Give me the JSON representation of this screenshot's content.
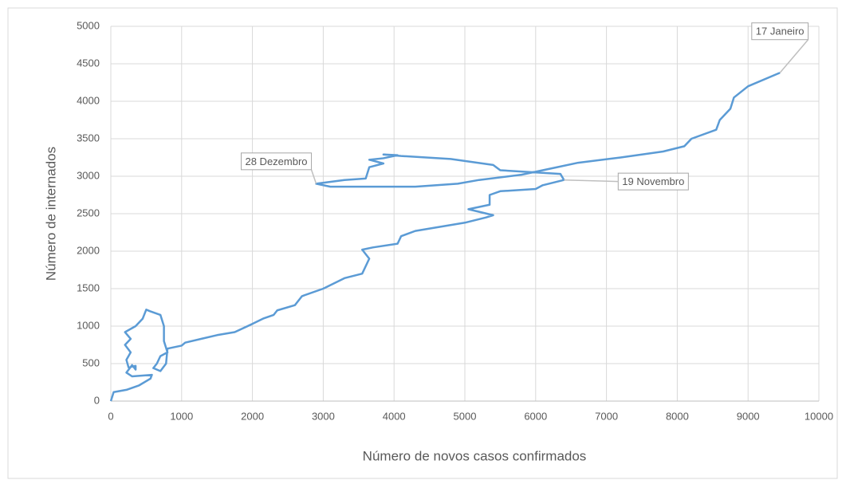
{
  "chart_data": {
    "type": "line",
    "x_label": "Número de novos casos confirmados",
    "y_label": "Número de internados",
    "x": [
      0,
      40,
      220,
      400,
      560,
      580,
      300,
      220,
      300,
      350,
      350,
      250,
      220,
      280,
      200,
      280,
      200,
      350,
      450,
      500,
      550,
      700,
      750,
      750,
      800,
      700,
      650,
      600,
      650,
      700,
      780,
      800,
      1000,
      1050,
      1500,
      1750,
      2000,
      2150,
      2300,
      2350,
      2600,
      2700,
      3000,
      3300,
      3550,
      3650,
      3550,
      3700,
      4050,
      4100,
      4300,
      5000,
      5300,
      5400,
      5050,
      5350,
      5350,
      5500,
      6000,
      6100,
      6400,
      6350,
      5500,
      5400,
      4800,
      4100,
      3850,
      4050,
      3850,
      3650,
      3850,
      3650,
      3600,
      3300,
      2900,
      3100,
      4300,
      4900,
      5200,
      5800,
      6300,
      6600,
      7200,
      7800,
      8100,
      8200,
      8550,
      8600,
      8750,
      8800,
      9000,
      9450
    ],
    "series": [
      {
        "name": "Internados",
        "color": "#5b9bd5",
        "values": [
          0,
          120,
          150,
          210,
          300,
          350,
          330,
          380,
          480,
          420,
          470,
          450,
          550,
          650,
          750,
          830,
          920,
          1000,
          1100,
          1220,
          1200,
          1150,
          1000,
          800,
          650,
          600,
          500,
          440,
          420,
          400,
          500,
          700,
          740,
          780,
          880,
          920,
          1030,
          1100,
          1150,
          1210,
          1280,
          1400,
          1500,
          1640,
          1700,
          1900,
          2020,
          2050,
          2100,
          2200,
          2270,
          2380,
          2450,
          2480,
          2560,
          2620,
          2750,
          2800,
          2830,
          2880,
          2950,
          3030,
          3080,
          3150,
          3230,
          3270,
          3290,
          3280,
          3240,
          3220,
          3170,
          3120,
          2970,
          2950,
          2900,
          2860,
          2860,
          2900,
          2950,
          3020,
          3120,
          3180,
          3250,
          3330,
          3400,
          3500,
          3620,
          3750,
          3900,
          4050,
          4200,
          4380
        ]
      }
    ],
    "annotations": [
      {
        "text": "17 Janeiro",
        "x": 9450,
        "y": 4380
      },
      {
        "text": "28 Dezembro",
        "x": 2900,
        "y": 2900
      },
      {
        "text": "19 Novembro",
        "x": 6400,
        "y": 2950
      }
    ],
    "xlim": [
      0,
      10000
    ],
    "xticks": [
      0,
      1000,
      2000,
      3000,
      4000,
      5000,
      6000,
      7000,
      8000,
      9000,
      10000
    ],
    "ylim": [
      0,
      5000
    ],
    "yticks": [
      0,
      500,
      1000,
      1500,
      2000,
      2500,
      3000,
      3500,
      4000,
      4500,
      5000
    ],
    "grid": true
  }
}
